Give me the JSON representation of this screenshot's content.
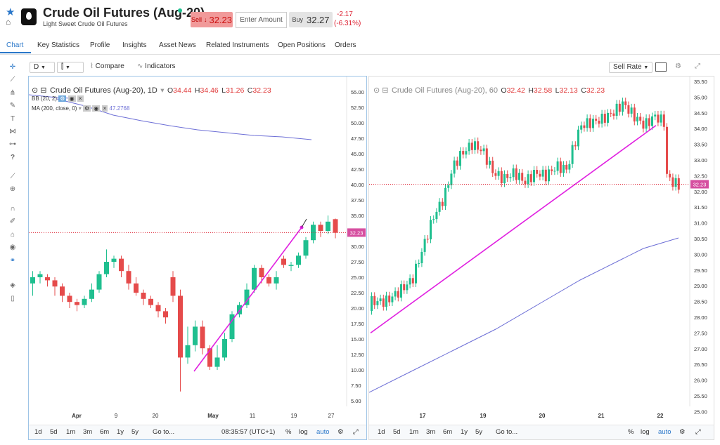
{
  "header": {
    "title": "Crude Oil Futures (Aug-20)",
    "subtitle": "Light Sweet Crude Oil Futures",
    "sell_label": "Sell",
    "sell_price": "32.23",
    "amount_placeholder": "Enter Amount",
    "buy_label": "Buy",
    "buy_price": "32.27",
    "change_abs": "-2.17",
    "change_pct": "(-6.31%)",
    "status_color": "#1fbf8f"
  },
  "tabs": [
    "Chart",
    "Key Statistics",
    "Profile",
    "Insights",
    "Asset News",
    "Related Instruments",
    "Open Positions",
    "Orders"
  ],
  "tools": [
    "crosshair-icon",
    "trendline-icon",
    "fib-icon",
    "brush-icon",
    "text-icon",
    "pattern-icon",
    "measure-icon",
    "help-icon",
    "ruler-icon",
    "zoom-icon",
    "magnet-icon",
    "lock-drawing-icon",
    "unlock-icon",
    "eye-icon",
    "link-icon",
    "layers-icon",
    "trash-icon"
  ],
  "toolbar": {
    "interval": "D",
    "compare": "Compare",
    "indicators": "Indicators",
    "sell_rate": "Sell Rate"
  },
  "left_chart": {
    "title": "Crude Oil Futures (Aug-20), 1D",
    "o_label": "O",
    "o": "34.44",
    "h_label": "H",
    "h": "34.46",
    "l_label": "L",
    "l": "31.26",
    "c_label": "C",
    "c": "32.23",
    "bb_label": "BB (20, 2)",
    "ma_label": "MA (200, close, 0)",
    "ma_value": "47.2768",
    "current_price": "32.23",
    "y_ticks": [
      "55.00",
      "52.50",
      "50.00",
      "47.50",
      "45.00",
      "42.50",
      "40.00",
      "37.50",
      "35.00",
      "32.50",
      "30.00",
      "27.50",
      "25.00",
      "22.50",
      "20.00",
      "17.50",
      "15.00",
      "12.50",
      "10.00",
      "7.50",
      "5.00"
    ],
    "x_ticks": [
      "Apr",
      "9",
      "20",
      "May",
      "11",
      "19",
      "27"
    ],
    "time_buttons": [
      "1d",
      "5d",
      "1m",
      "3m",
      "6m",
      "1y",
      "5y",
      "Go to..."
    ],
    "clock": "08:35:57 (UTC+1)",
    "pct": "%",
    "log": "log",
    "auto": "auto"
  },
  "right_chart": {
    "title": "Crude Oil Futures (Aug-20), 60",
    "o_label": "O",
    "o": "32.42",
    "h_label": "H",
    "h": "32.58",
    "l_label": "L",
    "l": "32.13",
    "c_label": "C",
    "c": "32.23",
    "current_price": "32.23",
    "y_ticks": [
      "35.50",
      "35.00",
      "34.50",
      "34.00",
      "33.50",
      "33.00",
      "32.50",
      "32.00",
      "31.50",
      "31.00",
      "30.50",
      "30.00",
      "29.50",
      "29.00",
      "28.50",
      "28.00",
      "27.50",
      "27.00",
      "26.50",
      "26.00",
      "25.50",
      "25.00"
    ],
    "x_ticks": [
      "17",
      "19",
      "20",
      "21",
      "22"
    ],
    "time_buttons": [
      "1d",
      "5d",
      "1m",
      "3m",
      "6m",
      "1y",
      "5y",
      "Go to..."
    ],
    "pct": "%",
    "log": "log",
    "auto": "auto"
  },
  "colors": {
    "up": "#1fbf8f",
    "down": "#e54b4b",
    "trendline": "#e020e0",
    "ma_line": "#6d6fd6",
    "accent": "#2a77c9",
    "price_tag": "#d64fa0"
  }
}
